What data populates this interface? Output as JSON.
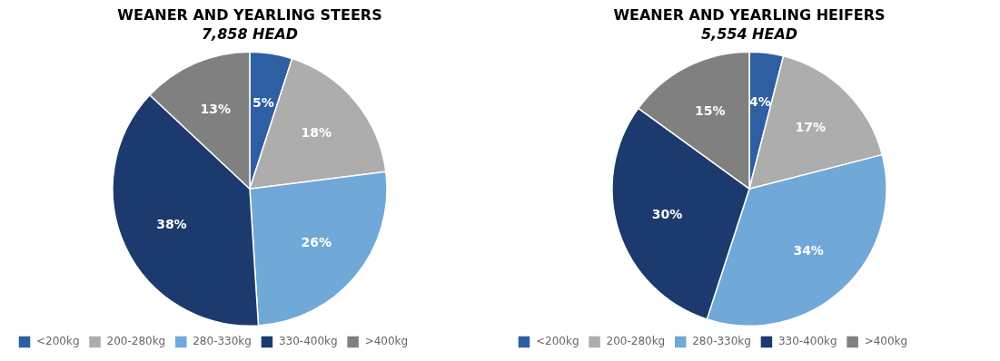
{
  "chart_data": [
    {
      "type": "pie",
      "title": "WEANER AND YEARLING STEERS",
      "subtitle": "7,858 HEAD",
      "categories": [
        "<200kg",
        "200-280kg",
        "280-330kg",
        "330-400kg",
        ">400kg"
      ],
      "values": [
        5,
        18,
        26,
        38,
        13
      ],
      "value_labels": [
        "5%",
        "18%",
        "26%",
        "38%",
        "13%"
      ],
      "colors": [
        "#2E5FA3",
        "#ADADAD",
        "#70A8D8",
        "#1C3A6E",
        "#808080"
      ],
      "data_labels": true,
      "legend": "lower left"
    },
    {
      "type": "pie",
      "title": "WEANER AND YEARLING HEIFERS",
      "subtitle": "5,554 HEAD",
      "categories": [
        "<200kg",
        "200-280kg",
        "280-330kg",
        "330-400kg",
        ">400kg"
      ],
      "values": [
        4,
        17,
        34,
        30,
        15
      ],
      "value_labels": [
        "4%",
        "17%",
        "34%",
        "30%",
        "15%"
      ],
      "colors": [
        "#2E5FA3",
        "#ADADAD",
        "#70A8D8",
        "#1C3A6E",
        "#808080"
      ],
      "data_labels": true,
      "legend": "lower left"
    }
  ]
}
